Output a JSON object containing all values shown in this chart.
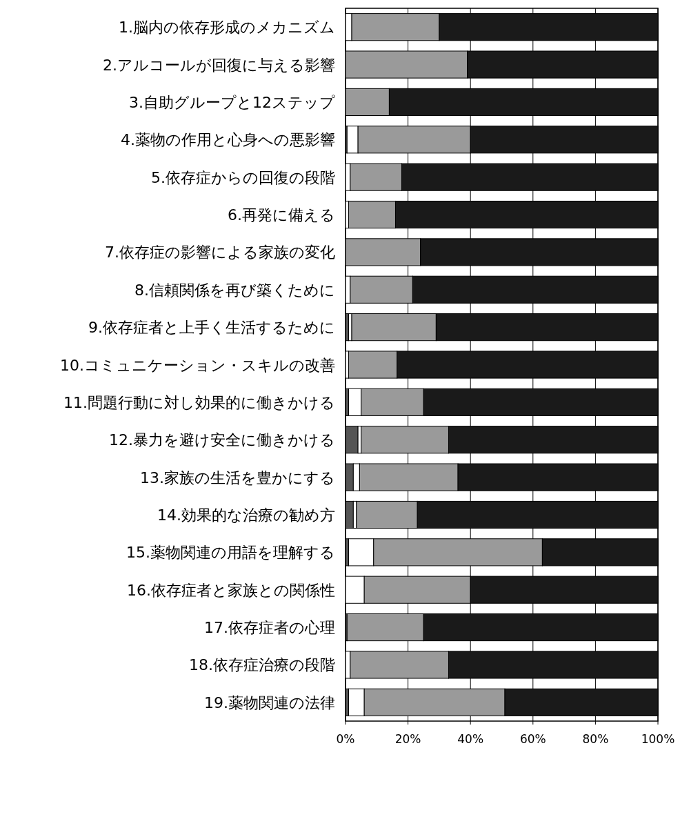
{
  "chart_data": {
    "type": "bar",
    "orientation": "horizontal",
    "stacked": true,
    "categories": [
      "1.脳内の依存形成のメカニズム",
      "2.アルコールが回復に与える影響",
      "3.自助グループと12ステップ",
      "4.薬物の作用と心身への悪影響",
      "5.依存症からの回復の段階",
      "6.再発に備える",
      "7.依存症の影響による家族の変化",
      "8.信頼関係を再び築くために",
      "9.依存症者と上手く生活するために",
      "10.コミュニケーション・スキルの改善",
      "11.問題行動に対し効果的に働きかける",
      "12.暴力を避け安全に働きかける",
      "13.家族の生活を豊かにする",
      "14.効果的な治療の勧め方",
      "15.薬物関連の用語を理解する",
      "16.依存症者と家族との関係性",
      "17.依存症者の心理",
      "18.依存症治療の段階",
      "19.薬物関連の法律"
    ],
    "series": [
      {
        "color": "#555555",
        "values": [
          0,
          0,
          0,
          0.5,
          0,
          0,
          0,
          0,
          1,
          0,
          1,
          4,
          2.5,
          2.5,
          1,
          0,
          0.5,
          0,
          1
        ]
      },
      {
        "color": "#ffffff",
        "values": [
          2,
          0,
          0,
          3.5,
          1.5,
          1,
          0,
          1.5,
          1,
          1,
          4,
          1,
          2,
          1,
          8,
          6,
          0,
          1.5,
          5
        ]
      },
      {
        "color": "#9a9a9a",
        "values": [
          28,
          39,
          14,
          36,
          16.5,
          15,
          24,
          20,
          27,
          15.5,
          20,
          28,
          31.5,
          19.5,
          54,
          34,
          24.5,
          31.5,
          45
        ]
      },
      {
        "color": "#1a1a1a",
        "values": [
          70,
          61,
          86,
          60,
          82,
          84,
          76,
          78.5,
          71,
          83.5,
          75,
          67,
          64,
          77,
          37,
          60,
          75,
          67,
          49
        ]
      }
    ],
    "xlim": [
      0,
      100
    ],
    "xticks": [
      {
        "value": 0,
        "label": "0%"
      },
      {
        "value": 20,
        "label": "20%"
      },
      {
        "value": 40,
        "label": "40%"
      },
      {
        "value": 60,
        "label": "60%"
      },
      {
        "value": 80,
        "label": "80%"
      },
      {
        "value": 100,
        "label": "100%"
      }
    ],
    "grid": "x"
  }
}
